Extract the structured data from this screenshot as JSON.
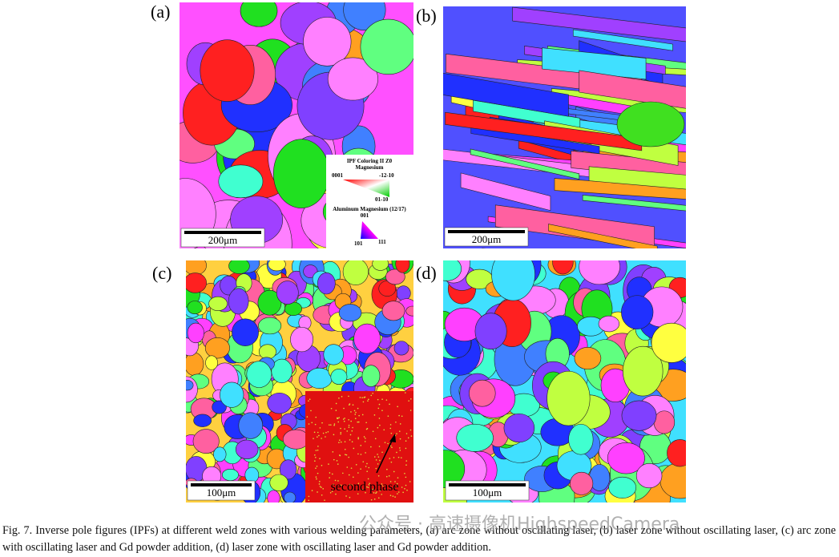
{
  "panels": [
    {
      "label": "(a)",
      "scale_bar": "200μm"
    },
    {
      "label": "(b)",
      "scale_bar": "200μm"
    },
    {
      "label": "(c)",
      "scale_bar": "100μm",
      "inset_label": "second phase"
    },
    {
      "label": "(d)",
      "scale_bar": "100μm"
    }
  ],
  "legend": {
    "title": "IPF Coloring II Z0",
    "phase1": "Magnesium",
    "mg_corners": [
      "0001",
      "-12-10",
      "01-10"
    ],
    "phase2": "Aluminum Magnesium (12/17)",
    "al_corners": [
      "001",
      "101",
      "111"
    ]
  },
  "caption": "Fig. 7. Inverse pole figures (IPFs) at different weld zones with various welding parameters, (a) arc zone without oscillating laser, (b) laser zone without oscillating laser, (c) arc zone with oscillating laser and Gd powder addition, (d) laser zone with oscillating laser and Gd powder addition.",
  "watermark": "公众号 · 高速摄像机HighspeedCamera"
}
